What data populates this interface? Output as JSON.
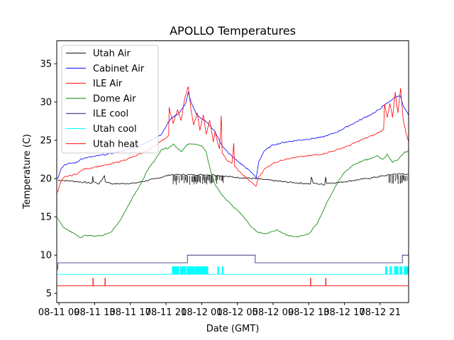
{
  "chart_data": {
    "type": "line",
    "title": "APOLLO Temperatures",
    "xlabel": "Date (GMT)",
    "ylabel": "Temperature (C)",
    "x_units": "hours since 08-11 09:00 GMT",
    "xlim": [
      -0.25,
      39.2
    ],
    "ylim": [
      3.8,
      38.0
    ],
    "yticks": [
      5,
      10,
      15,
      20,
      25,
      30,
      35
    ],
    "xticks": [
      {
        "value": 0,
        "label": "08-11 09"
      },
      {
        "value": 4,
        "label": "08-11 13"
      },
      {
        "value": 8,
        "label": "08-11 17"
      },
      {
        "value": 12,
        "label": "08-11 21"
      },
      {
        "value": 16,
        "label": "08-12 01"
      },
      {
        "value": 20,
        "label": "08-12 05"
      },
      {
        "value": 24,
        "label": "08-12 09"
      },
      {
        "value": 28,
        "label": "08-12 13"
      },
      {
        "value": 32,
        "label": "08-12 17"
      },
      {
        "value": 36,
        "label": "08-12 21"
      }
    ],
    "grid": false,
    "legend": {
      "placement": "top-left"
    },
    "series": [
      {
        "name": "Utah Air",
        "color": "#000000",
        "points": [
          [
            -0.15,
            19.8
          ],
          [
            1.3,
            19.7
          ],
          [
            3.7,
            19.4
          ],
          [
            3.8,
            20.3
          ],
          [
            3.85,
            19.6
          ],
          [
            4.5,
            19.3
          ],
          [
            5.1,
            20.4
          ],
          [
            5.2,
            19.6
          ],
          [
            6.1,
            19.3
          ],
          [
            8.5,
            19.4
          ],
          [
            10.9,
            20.0
          ],
          [
            12.5,
            20.5
          ],
          [
            17.2,
            20.5
          ],
          [
            19.4,
            20.2
          ],
          [
            22.0,
            20.0
          ],
          [
            25.1,
            19.6
          ],
          [
            28.2,
            19.3
          ],
          [
            28.3,
            20.2
          ],
          [
            28.5,
            19.4
          ],
          [
            29.8,
            19.2
          ],
          [
            29.9,
            20.2
          ],
          [
            30.0,
            19.4
          ],
          [
            31.4,
            19.5
          ],
          [
            34.5,
            20.0
          ],
          [
            37.7,
            20.6
          ],
          [
            39.2,
            20.6
          ]
        ],
        "noise_spikes": {
          "from": 12.8,
          "to": 18.5,
          "depth": 1.2,
          "from2": 37.0,
          "to2": 39.2
        }
      },
      {
        "name": "Cabinet Air",
        "color": "#0000ff",
        "points": [
          [
            -0.15,
            20.0
          ],
          [
            0.2,
            21.2
          ],
          [
            0.6,
            21.8
          ],
          [
            1.3,
            22.0
          ],
          [
            2.0,
            22.1
          ],
          [
            2.5,
            22.6
          ],
          [
            4.0,
            22.9
          ],
          [
            5.5,
            23.2
          ],
          [
            7.0,
            23.6
          ],
          [
            8.5,
            24.1
          ],
          [
            10.0,
            24.8
          ],
          [
            11.5,
            25.8
          ],
          [
            12.5,
            27.8
          ],
          [
            13.5,
            28.6
          ],
          [
            14.2,
            29.8
          ],
          [
            14.5,
            31.3
          ],
          [
            14.8,
            30.0
          ],
          [
            15.4,
            28.4
          ],
          [
            16.0,
            27.8
          ],
          [
            16.6,
            27.3
          ],
          [
            17.4,
            26.3
          ],
          [
            18.2,
            24.5
          ],
          [
            19.0,
            23.3
          ],
          [
            20.0,
            22.3
          ],
          [
            21.2,
            21.2
          ],
          [
            22.0,
            20.3
          ],
          [
            22.1,
            20.0
          ],
          [
            22.4,
            22.2
          ],
          [
            23.0,
            23.6
          ],
          [
            24.0,
            24.4
          ],
          [
            25.5,
            24.8
          ],
          [
            27.5,
            25.1
          ],
          [
            29.5,
            25.4
          ],
          [
            31.0,
            26.0
          ],
          [
            32.5,
            26.9
          ],
          [
            34.0,
            27.8
          ],
          [
            35.5,
            28.7
          ],
          [
            36.5,
            29.6
          ],
          [
            37.2,
            30.2
          ],
          [
            37.8,
            30.7
          ],
          [
            38.3,
            30.8
          ],
          [
            38.6,
            29.5
          ],
          [
            39.2,
            28.3
          ]
        ]
      },
      {
        "name": "ILE Air",
        "color": "#ff0000",
        "points": [
          [
            -0.15,
            18.2
          ],
          [
            0.2,
            19.6
          ],
          [
            0.6,
            20.2
          ],
          [
            1.3,
            20.4
          ],
          [
            2.0,
            20.6
          ],
          [
            2.7,
            21.2
          ],
          [
            4.0,
            21.5
          ],
          [
            5.5,
            21.8
          ],
          [
            7.0,
            22.3
          ],
          [
            8.5,
            22.9
          ],
          [
            10.0,
            23.7
          ],
          [
            11.5,
            24.9
          ],
          [
            12.3,
            25.6
          ],
          [
            12.35,
            29.3
          ],
          [
            12.8,
            27.2
          ],
          [
            13.3,
            29.0
          ],
          [
            13.7,
            27.6
          ],
          [
            14.1,
            30.5
          ],
          [
            14.5,
            32.0
          ],
          [
            14.8,
            29.0
          ],
          [
            15.1,
            27.0
          ],
          [
            15.5,
            28.6
          ],
          [
            15.8,
            26.3
          ],
          [
            16.2,
            28.3
          ],
          [
            16.5,
            25.8
          ],
          [
            16.9,
            27.6
          ],
          [
            17.3,
            24.8
          ],
          [
            17.5,
            26.2
          ],
          [
            17.8,
            24.6
          ],
          [
            18.0,
            23.9
          ],
          [
            18.2,
            28.2
          ],
          [
            18.3,
            23.3
          ],
          [
            18.9,
            22.3
          ],
          [
            19.4,
            22.0
          ],
          [
            19.6,
            24.6
          ],
          [
            19.7,
            21.6
          ],
          [
            20.5,
            20.6
          ],
          [
            21.2,
            19.9
          ],
          [
            22.0,
            19.1
          ],
          [
            22.1,
            19.0
          ],
          [
            22.3,
            20.0
          ],
          [
            23.0,
            21.2
          ],
          [
            24.0,
            22.0
          ],
          [
            25.5,
            22.6
          ],
          [
            27.5,
            22.9
          ],
          [
            29.5,
            23.2
          ],
          [
            31.0,
            23.7
          ],
          [
            32.5,
            24.3
          ],
          [
            34.0,
            25.1
          ],
          [
            35.5,
            25.8
          ],
          [
            36.4,
            26.4
          ],
          [
            36.5,
            29.7
          ],
          [
            36.8,
            28.0
          ],
          [
            37.1,
            29.8
          ],
          [
            37.4,
            28.0
          ],
          [
            37.7,
            31.3
          ],
          [
            38.0,
            28.6
          ],
          [
            38.3,
            31.8
          ],
          [
            38.6,
            27.6
          ],
          [
            38.9,
            26.0
          ],
          [
            39.2,
            24.8
          ]
        ]
      },
      {
        "name": "Dome Air",
        "color": "#008000",
        "points": [
          [
            -0.15,
            14.8
          ],
          [
            0.5,
            13.6
          ],
          [
            1.2,
            13.1
          ],
          [
            1.8,
            12.8
          ],
          [
            2.3,
            12.3
          ],
          [
            3.0,
            12.6
          ],
          [
            4.0,
            12.5
          ],
          [
            5.0,
            12.6
          ],
          [
            6.0,
            13.2
          ],
          [
            7.0,
            14.8
          ],
          [
            8.0,
            17.0
          ],
          [
            9.0,
            19.0
          ],
          [
            10.0,
            21.2
          ],
          [
            10.8,
            22.5
          ],
          [
            11.5,
            23.8
          ],
          [
            12.3,
            24.0
          ],
          [
            12.8,
            24.5
          ],
          [
            13.2,
            24.1
          ],
          [
            13.7,
            23.5
          ],
          [
            14.4,
            24.5
          ],
          [
            15.3,
            24.5
          ],
          [
            16.0,
            24.3
          ],
          [
            16.5,
            23.5
          ],
          [
            17.0,
            21.0
          ],
          [
            17.5,
            19.2
          ],
          [
            18.2,
            18.0
          ],
          [
            19.3,
            16.6
          ],
          [
            20.5,
            15.3
          ],
          [
            21.5,
            13.8
          ],
          [
            22.3,
            13.0
          ],
          [
            23.0,
            12.8
          ],
          [
            24.0,
            13.1
          ],
          [
            24.5,
            13.3
          ],
          [
            25.5,
            12.6
          ],
          [
            26.5,
            12.4
          ],
          [
            27.5,
            12.6
          ],
          [
            28.0,
            12.8
          ],
          [
            29.0,
            14.2
          ],
          [
            30.0,
            16.8
          ],
          [
            31.0,
            19.0
          ],
          [
            32.0,
            20.8
          ],
          [
            33.0,
            21.8
          ],
          [
            34.0,
            22.3
          ],
          [
            35.0,
            22.6
          ],
          [
            35.7,
            23.0
          ],
          [
            36.3,
            22.5
          ],
          [
            36.8,
            23.2
          ],
          [
            37.4,
            22.1
          ],
          [
            38.0,
            22.5
          ],
          [
            38.7,
            23.4
          ],
          [
            39.2,
            23.6
          ]
        ]
      },
      {
        "name": "ILE cool",
        "color": "#191970",
        "points": [
          [
            -0.15,
            8.1
          ],
          [
            -0.1,
            9.0
          ],
          [
            14.4,
            9.0
          ],
          [
            14.4,
            10.0
          ],
          [
            22.0,
            10.0
          ],
          [
            22.0,
            9.0
          ],
          [
            38.5,
            9.0
          ],
          [
            38.5,
            10.0
          ],
          [
            39.2,
            10.0
          ]
        ]
      },
      {
        "name": "Utah cool",
        "color": "#00ffff",
        "baseline": 7.5,
        "pulse_value": 8.5,
        "pulse_ranges_hours": [
          [
            12.7,
            13.5
          ],
          [
            13.6,
            14.2
          ],
          [
            14.3,
            15.2
          ],
          [
            15.3,
            16.7
          ],
          [
            17.8,
            17.9
          ],
          [
            18.3,
            18.4
          ],
          [
            36.6,
            36.8
          ],
          [
            37.1,
            37.3
          ],
          [
            37.6,
            38.0
          ],
          [
            38.2,
            38.5
          ],
          [
            38.7,
            39.2
          ]
        ]
      },
      {
        "name": "Utah heat",
        "color": "#ff0000",
        "baseline": 6.0,
        "pulse_value": 7.0,
        "pulse_times_hours": [
          3.8,
          5.15,
          28.2,
          29.9
        ]
      }
    ]
  }
}
